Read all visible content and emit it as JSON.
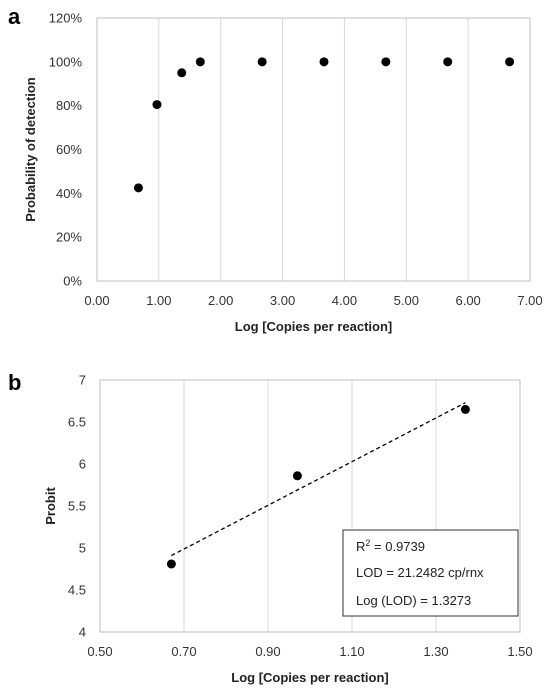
{
  "chart_data": [
    {
      "panel": "a",
      "type": "scatter",
      "xlabel": "Log [Copies per reaction]",
      "ylabel": "Probability of detection",
      "xlim": [
        0,
        7
      ],
      "ylim": [
        0,
        120
      ],
      "x_ticks": [
        "0.00",
        "1.00",
        "2.00",
        "3.00",
        "4.00",
        "5.00",
        "6.00",
        "7.00"
      ],
      "y_ticks": [
        "0%",
        "20%",
        "40%",
        "60%",
        "80%",
        "100%",
        "120%"
      ],
      "grid": "vertical",
      "series": [
        {
          "x": [
            0.67,
            0.97,
            1.37,
            1.67,
            2.67,
            3.67,
            4.67,
            5.67,
            6.67
          ],
          "y": [
            42.5,
            80.5,
            95,
            100,
            100,
            100,
            100,
            100,
            100
          ]
        }
      ]
    },
    {
      "panel": "b",
      "type": "scatter",
      "xlabel": "Log [Copies per reaction]",
      "ylabel": "Probit",
      "xlim": [
        0.5,
        1.5
      ],
      "ylim": [
        4,
        7
      ],
      "x_ticks": [
        "0.50",
        "0.70",
        "0.90",
        "1.10",
        "1.30",
        "1.50"
      ],
      "y_ticks": [
        "4",
        "4.5",
        "5",
        "5.5",
        "6",
        "6.5",
        "7"
      ],
      "grid": "vertical",
      "series": [
        {
          "x": [
            0.67,
            0.97,
            1.37
          ],
          "y": [
            4.81,
            5.86,
            6.65
          ]
        }
      ],
      "trendline": {
        "x": [
          0.67,
          1.37
        ],
        "y": [
          4.91,
          6.73
        ],
        "style": "dashed"
      },
      "annotations": {
        "r2_prefix": "R",
        "r2_sup": "2",
        "r2_value": " = 0.9739",
        "lod": "LOD = 21.2482 cp/rnx",
        "log_lod": "Log (LOD) = 1.3273"
      }
    }
  ]
}
